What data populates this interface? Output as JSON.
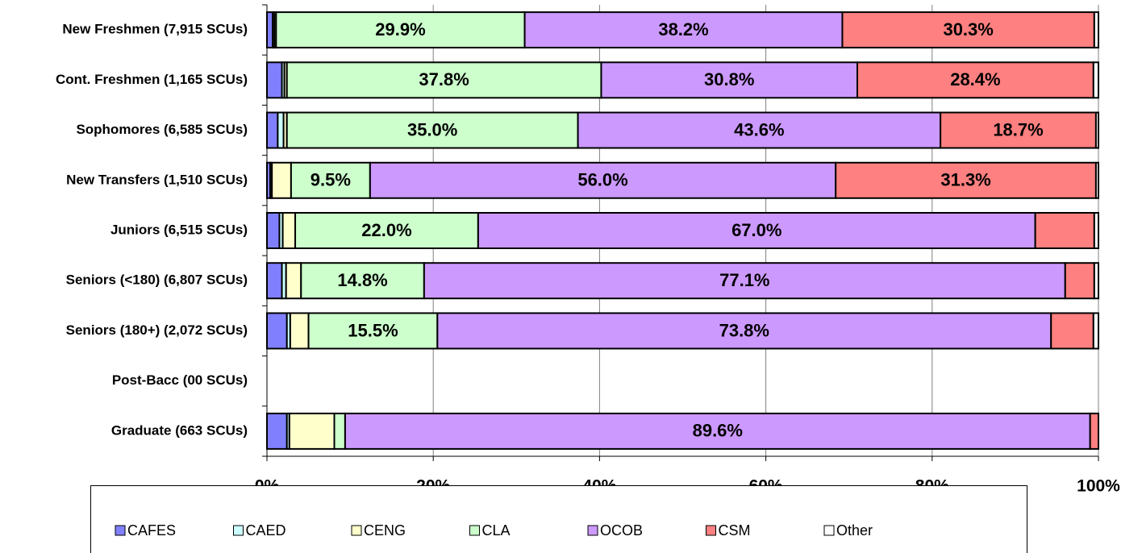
{
  "chart_data": {
    "type": "stacked_barh",
    "categories": [
      "New Freshmen (7,915 SCUs)",
      "Cont. Freshmen (1,165 SCUs)",
      "Sophomores (6,585 SCUs)",
      "New Transfers (1,510 SCUs)",
      "Juniors (6,515 SCUs)",
      "Seniors (<180) (6,807 SCUs)",
      "Seniors (180+) (2,072 SCUs)",
      "Post-Bacc (00 SCUs)",
      "Graduate (663 SCUs)"
    ],
    "series": [
      {
        "name": "CAFES",
        "color": "#8080ff",
        "values": [
          0.7,
          1.8,
          1.3,
          0.4,
          1.5,
          1.8,
          2.4,
          null,
          2.4
        ]
      },
      {
        "name": "CAED",
        "color": "#ccffff",
        "values": [
          0.2,
          0.3,
          0.7,
          0.2,
          0.4,
          0.5,
          0.4,
          null,
          0.3
        ]
      },
      {
        "name": "CENG",
        "color": "#ffffcc",
        "values": [
          0.2,
          0.3,
          0.4,
          2.3,
          1.5,
          1.8,
          2.2,
          null,
          5.4
        ]
      },
      {
        "name": "CLA",
        "color": "#ccffcc",
        "values": [
          29.9,
          37.8,
          35.0,
          9.5,
          22.0,
          14.8,
          15.5,
          null,
          1.3
        ],
        "value_labels": [
          "29.9%",
          "37.8%",
          "35.0%",
          "9.5%",
          "22.0%",
          "14.8%",
          "15.5%",
          null,
          null
        ]
      },
      {
        "name": "OCOB",
        "color": "#cc99ff",
        "values": [
          38.2,
          30.8,
          43.6,
          56.0,
          67.0,
          77.1,
          73.8,
          null,
          89.6
        ],
        "value_labels": [
          "38.2%",
          "30.8%",
          "43.6%",
          "56.0%",
          "67.0%",
          "77.1%",
          "73.8%",
          null,
          "89.6%"
        ]
      },
      {
        "name": "CSM",
        "color": "#ff8080",
        "values": [
          30.3,
          28.4,
          18.7,
          31.3,
          7.1,
          3.5,
          5.1,
          null,
          1.0
        ],
        "value_labels": [
          "30.3%",
          "28.4%",
          "18.7%",
          "31.3%",
          null,
          null,
          null,
          null,
          null
        ]
      },
      {
        "name": "Other",
        "color": "#ffffff",
        "values": [
          0.5,
          0.6,
          0.3,
          0.3,
          0.5,
          0.5,
          0.6,
          null,
          0.0
        ]
      }
    ],
    "xlim": [
      0,
      100
    ],
    "xticks": [
      {
        "value": 0,
        "label": "0%"
      },
      {
        "value": 20,
        "label": "20%"
      },
      {
        "value": 40,
        "label": "40%"
      },
      {
        "value": 60,
        "label": "60%"
      },
      {
        "value": 80,
        "label": "80%"
      },
      {
        "value": 100,
        "label": "100%"
      }
    ],
    "grid": true,
    "legend": "bottom"
  }
}
